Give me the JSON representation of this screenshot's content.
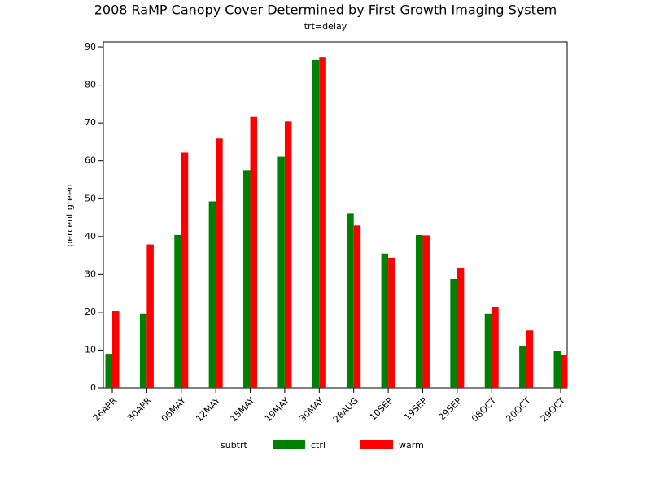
{
  "chart_data": {
    "type": "bar",
    "title": "2008 RaMP Canopy Cover Determined by First Growth Imaging System",
    "subtitle": "trt=delay",
    "y_label": "percent green",
    "legend_title": "subtrt",
    "categories": [
      "26APR",
      "30APR",
      "06MAY",
      "12MAY",
      "15MAY",
      "19MAY",
      "30MAY",
      "28AUG",
      "10SEP",
      "19SEP",
      "29SEP",
      "08OCT",
      "20OCT",
      "29OCT"
    ],
    "series": [
      {
        "name": "ctrl",
        "color": "#008000",
        "values": [
          9,
          19.6,
          40.4,
          49.3,
          57.5,
          61.1,
          86.6,
          46.1,
          35.5,
          40.4,
          28.8,
          19.6,
          11,
          9.8
        ]
      },
      {
        "name": "warm",
        "color": "#ff0000",
        "values": [
          20.4,
          37.9,
          62.2,
          65.9,
          71.6,
          70.4,
          87.4,
          42.9,
          34.4,
          40.3,
          31.6,
          21.3,
          15.2,
          8.7
        ]
      }
    ],
    "ylim": [
      0,
      91.3
    ],
    "yticks": [
      0,
      10,
      20,
      30,
      40,
      50,
      60,
      70,
      80,
      90
    ]
  }
}
